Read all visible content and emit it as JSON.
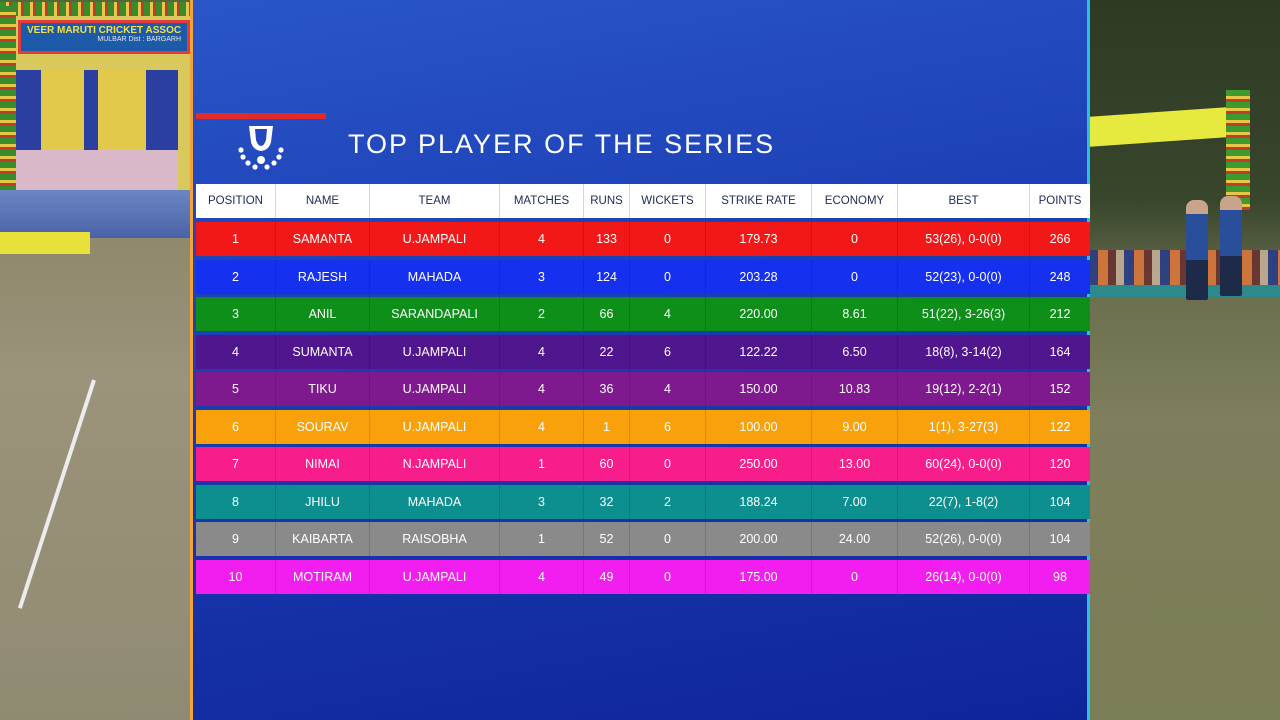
{
  "banner": {
    "line1": "VEER MARUTI CRICKET ASSOC",
    "line2": "MULBAR Dist : BARGARH"
  },
  "title": "TOP PLAYER OF THE SERIES",
  "logo_icon": "trophy-cup-icon",
  "columns": [
    "POSITION",
    "NAME",
    "TEAM",
    "MATCHES",
    "RUNS",
    "WICKETS",
    "STRIKE RATE",
    "ECONOMY",
    "BEST",
    "POINTS"
  ],
  "rows": [
    {
      "position": "1",
      "name": "SAMANTA",
      "team": "U.JAMPALI",
      "matches": "4",
      "runs": "133",
      "wickets": "0",
      "strike_rate": "179.73",
      "economy": "0",
      "best": "53(26), 0-0(0)",
      "points": "266",
      "color": "#f21818"
    },
    {
      "position": "2",
      "name": "RAJESH",
      "team": "MAHADA",
      "matches": "3",
      "runs": "124",
      "wickets": "0",
      "strike_rate": "203.28",
      "economy": "0",
      "best": "52(23), 0-0(0)",
      "points": "248",
      "color": "#1630f0"
    },
    {
      "position": "3",
      "name": "ANIL",
      "team": "SARANDAPALI",
      "matches": "2",
      "runs": "66",
      "wickets": "4",
      "strike_rate": "220.00",
      "economy": "8.61",
      "best": "51(22), 3-26(3)",
      "points": "212",
      "color": "#0d8f1a"
    },
    {
      "position": "4",
      "name": "SUMANTA",
      "team": "U.JAMPALI",
      "matches": "4",
      "runs": "22",
      "wickets": "6",
      "strike_rate": "122.22",
      "economy": "6.50",
      "best": "18(8), 3-14(2)",
      "points": "164",
      "color": "#4f168d"
    },
    {
      "position": "5",
      "name": "TIKU",
      "team": "U.JAMPALI",
      "matches": "4",
      "runs": "36",
      "wickets": "4",
      "strike_rate": "150.00",
      "economy": "10.83",
      "best": "19(12), 2-2(1)",
      "points": "152",
      "color": "#7e1a8e"
    },
    {
      "position": "6",
      "name": "SOURAV",
      "team": "U.JAMPALI",
      "matches": "4",
      "runs": "1",
      "wickets": "6",
      "strike_rate": "100.00",
      "economy": "9.00",
      "best": "1(1), 3-27(3)",
      "points": "122",
      "color": "#f9a10a"
    },
    {
      "position": "7",
      "name": "NIMAI",
      "team": "N.JAMPALI",
      "matches": "1",
      "runs": "60",
      "wickets": "0",
      "strike_rate": "250.00",
      "economy": "13.00",
      "best": "60(24), 0-0(0)",
      "points": "120",
      "color": "#f71e8c"
    },
    {
      "position": "8",
      "name": "JHILU",
      "team": "MAHADA",
      "matches": "3",
      "runs": "32",
      "wickets": "2",
      "strike_rate": "188.24",
      "economy": "7.00",
      "best": "22(7), 1-8(2)",
      "points": "104",
      "color": "#0d8f8f"
    },
    {
      "position": "9",
      "name": "KAIBARTA",
      "team": "RAISOBHA",
      "matches": "1",
      "runs": "52",
      "wickets": "0",
      "strike_rate": "200.00",
      "economy": "24.00",
      "best": "52(26), 0-0(0)",
      "points": "104",
      "color": "#8a8a8a"
    },
    {
      "position": "10",
      "name": "MOTIRAM",
      "team": "U.JAMPALI",
      "matches": "4",
      "runs": "49",
      "wickets": "0",
      "strike_rate": "175.00",
      "economy": "0",
      "best": "26(14), 0-0(0)",
      "points": "98",
      "color": "#f21ef0"
    }
  ]
}
